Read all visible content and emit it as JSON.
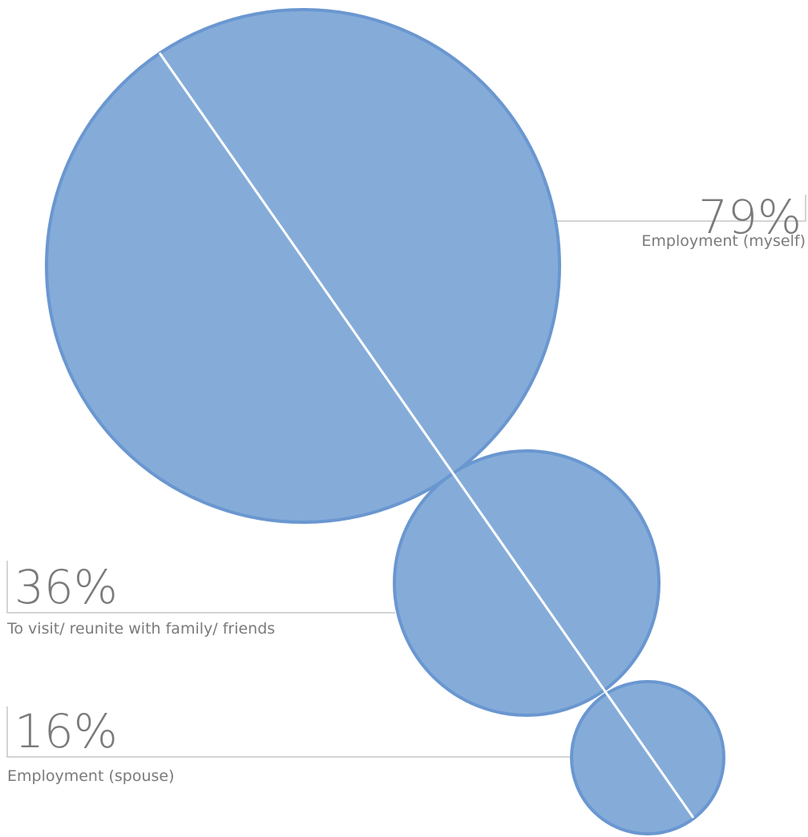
{
  "chart_data": {
    "type": "bubble",
    "unit": "%",
    "series": [
      {
        "label": "Employment (myself)",
        "value": 79,
        "value_text": "79%"
      },
      {
        "label": "To visit/ reunite with family/ friends",
        "value": 36,
        "value_text": "36%"
      },
      {
        "label": "Employment (spouse)",
        "value": 16,
        "value_text": "16%"
      }
    ],
    "colors": {
      "bubble_fill": "#85acd9",
      "bubble_stroke": "#6a97d0",
      "label_text": "#7a7a7a",
      "leader_line": "#c6c6c6"
    }
  }
}
